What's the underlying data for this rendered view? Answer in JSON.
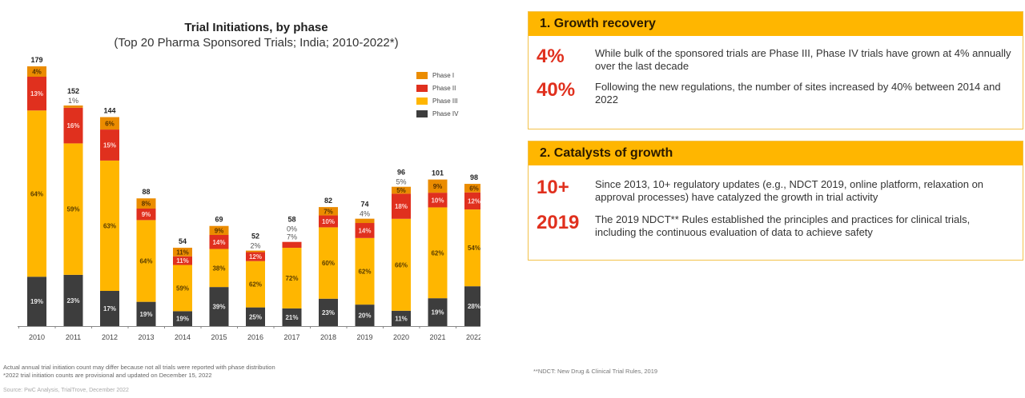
{
  "chart_data": {
    "type": "bar",
    "stacked": true,
    "title": "Trial Initiations, by phase",
    "subtitle": "(Top 20 Pharma Sponsored Trials; India; 2010-2022*)",
    "xlabel": "",
    "ylabel": "",
    "categories": [
      "2010",
      "2011",
      "2012",
      "2013",
      "2014",
      "2015",
      "2016",
      "2017",
      "2018",
      "2019",
      "2020",
      "2021",
      "2022"
    ],
    "totals": [
      179,
      152,
      144,
      88,
      54,
      69,
      52,
      58,
      82,
      74,
      96,
      101,
      98
    ],
    "series": [
      {
        "name": "Phase IV",
        "color": "#3d3d3d",
        "values": [
          19,
          23,
          17,
          19,
          19,
          39,
          25,
          21,
          23,
          20,
          11,
          19,
          28
        ]
      },
      {
        "name": "Phase III",
        "color": "#ffb600",
        "values": [
          64,
          59,
          63,
          64,
          59,
          38,
          62,
          72,
          60,
          62,
          66,
          62,
          54
        ]
      },
      {
        "name": "Phase II",
        "color": "#e0301e",
        "values": [
          13,
          16,
          15,
          9,
          11,
          14,
          12,
          7,
          10,
          14,
          18,
          10,
          12
        ]
      },
      {
        "name": "Phase I",
        "color": "#eb8c00",
        "values": [
          4,
          1,
          6,
          8,
          11,
          9,
          2,
          0,
          7,
          4,
          5,
          9,
          6
        ]
      }
    ],
    "value_unit": "% share of annual initiations",
    "outside_labels": {
      "2011": [
        "1%"
      ],
      "2016": [
        "2%"
      ],
      "2017": [
        "0%",
        "7%"
      ],
      "2019": [
        "4%"
      ],
      "2020": [
        "5%"
      ]
    },
    "legend": {
      "position": "top-right",
      "entries": [
        "Phase I",
        "Phase II",
        "Phase III",
        "Phase IV"
      ]
    },
    "grid": false
  },
  "footnotes": {
    "line1": "Actual annual trial initiation count may differ because not all trials were reported with phase distribution",
    "line2": "*2022 trial initiation counts are provisional and updated on December 15, 2022",
    "source": "Source: PwC Analysis, TrialTrove, December 2022"
  },
  "panels": [
    {
      "title": "1. Growth recovery",
      "stats": [
        {
          "value": "4%",
          "text": "While bulk of the sponsored trials are Phase III, Phase IV trials have grown at 4% annually over the last decade"
        },
        {
          "value": "40%",
          "text": "Following the new regulations, the number of sites increased by 40% between 2014 and 2022"
        }
      ]
    },
    {
      "title": "2. Catalysts of growth",
      "stats": [
        {
          "value": "10+",
          "text": "Since 2013, 10+ regulatory updates (e.g., NDCT 2019, online platform, relaxation on approval processes) have catalyzed the growth in trial activity"
        },
        {
          "value": "2019",
          "text": "The 2019 NDCT** Rules established the principles and practices for clinical trials, including the continuous evaluation of data to achieve safety"
        }
      ]
    }
  ],
  "ndct_note": "**NDCT: New Drug & Clinical Trial Rules, 2019"
}
